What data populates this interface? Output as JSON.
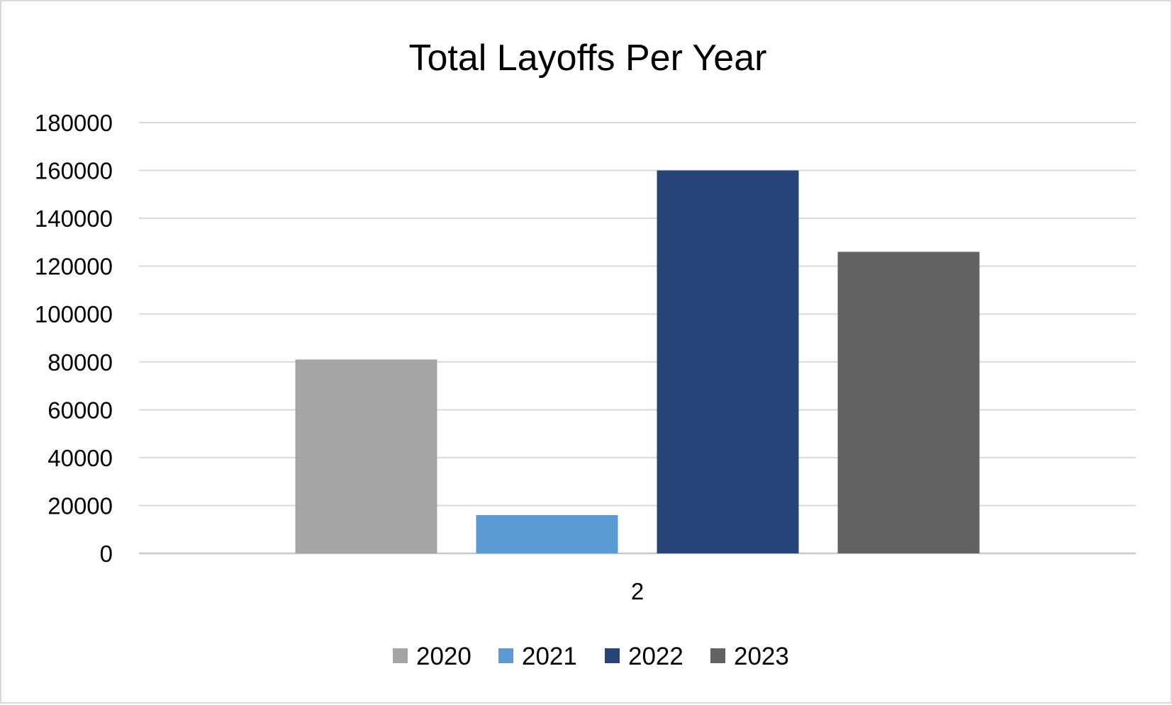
{
  "chart_data": {
    "type": "bar",
    "title": "Total Layoffs Per Year",
    "xlabel": "",
    "ylabel": "",
    "categories": [
      "2"
    ],
    "series": [
      {
        "name": "2020",
        "values": [
          81000
        ],
        "color": "#a5a5a5"
      },
      {
        "name": "2021",
        "values": [
          16000
        ],
        "color": "#5b9bd5"
      },
      {
        "name": "2022",
        "values": [
          160000
        ],
        "color": "#264478"
      },
      {
        "name": "2023",
        "values": [
          126000
        ],
        "color": "#636363"
      }
    ],
    "ylim": [
      0,
      180000
    ],
    "yticks": [
      "0",
      "20000",
      "40000",
      "60000",
      "80000",
      "100000",
      "120000",
      "140000",
      "160000",
      "180000"
    ],
    "grid": true,
    "legend_position": "bottom"
  }
}
